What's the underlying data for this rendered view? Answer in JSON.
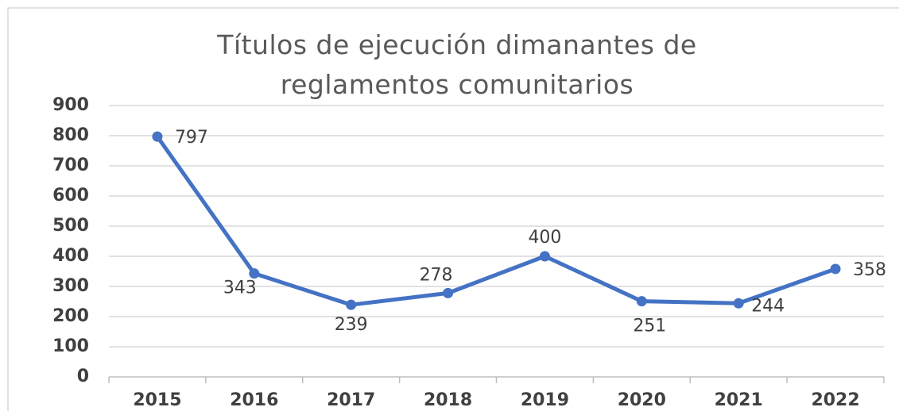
{
  "chart_data": {
    "type": "line",
    "title": "Títulos de ejecución dimanantes de reglamentos comunitarios",
    "categories": [
      "2015",
      "2016",
      "2017",
      "2018",
      "2019",
      "2020",
      "2021",
      "2022"
    ],
    "values": [
      797,
      343,
      239,
      278,
      400,
      251,
      244,
      358
    ],
    "color": "#4472c4",
    "ylim": [
      0,
      900
    ],
    "yticks": [
      0,
      100,
      200,
      300,
      400,
      500,
      600,
      700,
      800,
      900
    ],
    "grid": true
  }
}
